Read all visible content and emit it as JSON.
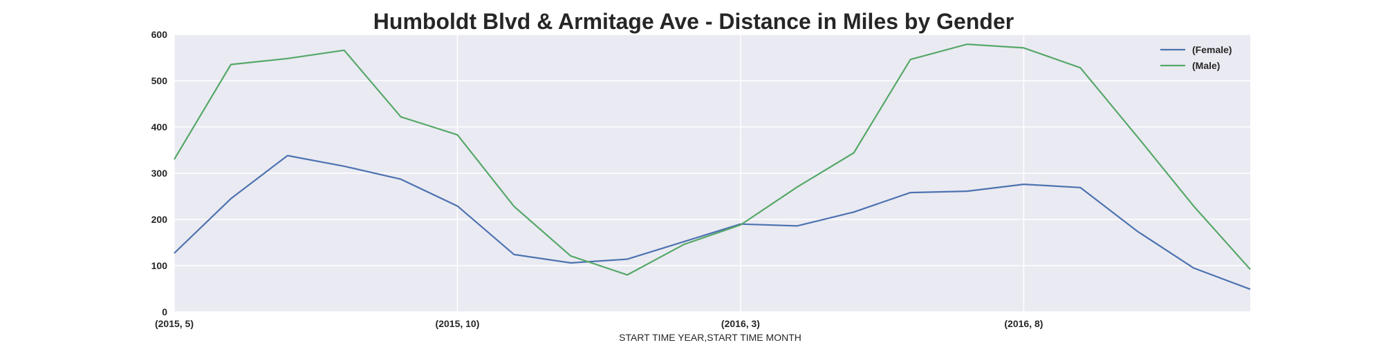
{
  "chart_data": {
    "type": "line",
    "title": "Humboldt Blvd & Armitage Ave - Distance in Miles by Gender",
    "xlabel": "START TIME YEAR,START TIME MONTH",
    "ylabel": "",
    "x": [
      "(2015, 5)",
      "(2015, 6)",
      "(2015, 7)",
      "(2015, 8)",
      "(2015, 9)",
      "(2015, 10)",
      "(2015, 11)",
      "(2015, 12)",
      "(2016, 1)",
      "(2016, 2)",
      "(2016, 3)",
      "(2016, 4)",
      "(2016, 5)",
      "(2016, 6)",
      "(2016, 7)",
      "(2016, 8)",
      "(2016, 9)",
      "(2016, 10)",
      "(2016, 11)",
      "(2016, 12)"
    ],
    "xticks": [
      {
        "index": 0,
        "label": "(2015, 5)"
      },
      {
        "index": 5,
        "label": "(2015, 10)"
      },
      {
        "index": 10,
        "label": "(2016, 3)"
      },
      {
        "index": 15,
        "label": "(2016, 8)"
      }
    ],
    "ylim": [
      0,
      600
    ],
    "yticks": [
      0,
      100,
      200,
      300,
      400,
      500,
      600
    ],
    "grid": true,
    "legend": "top-right",
    "series": [
      {
        "name": "(Female)",
        "color": "#4c72b0",
        "values": [
          127,
          245,
          338,
          315,
          287,
          229,
          124,
          106,
          114,
          152,
          190,
          186,
          216,
          258,
          261,
          276,
          269,
          175,
          95,
          49
        ]
      },
      {
        "name": "(Male)",
        "color": "#55a868",
        "values": [
          330,
          535,
          548,
          566,
          422,
          383,
          228,
          121,
          80,
          146,
          188,
          270,
          344,
          546,
          579,
          571,
          528,
          380,
          229,
          92
        ]
      }
    ],
    "background": "#eaeaf2"
  }
}
